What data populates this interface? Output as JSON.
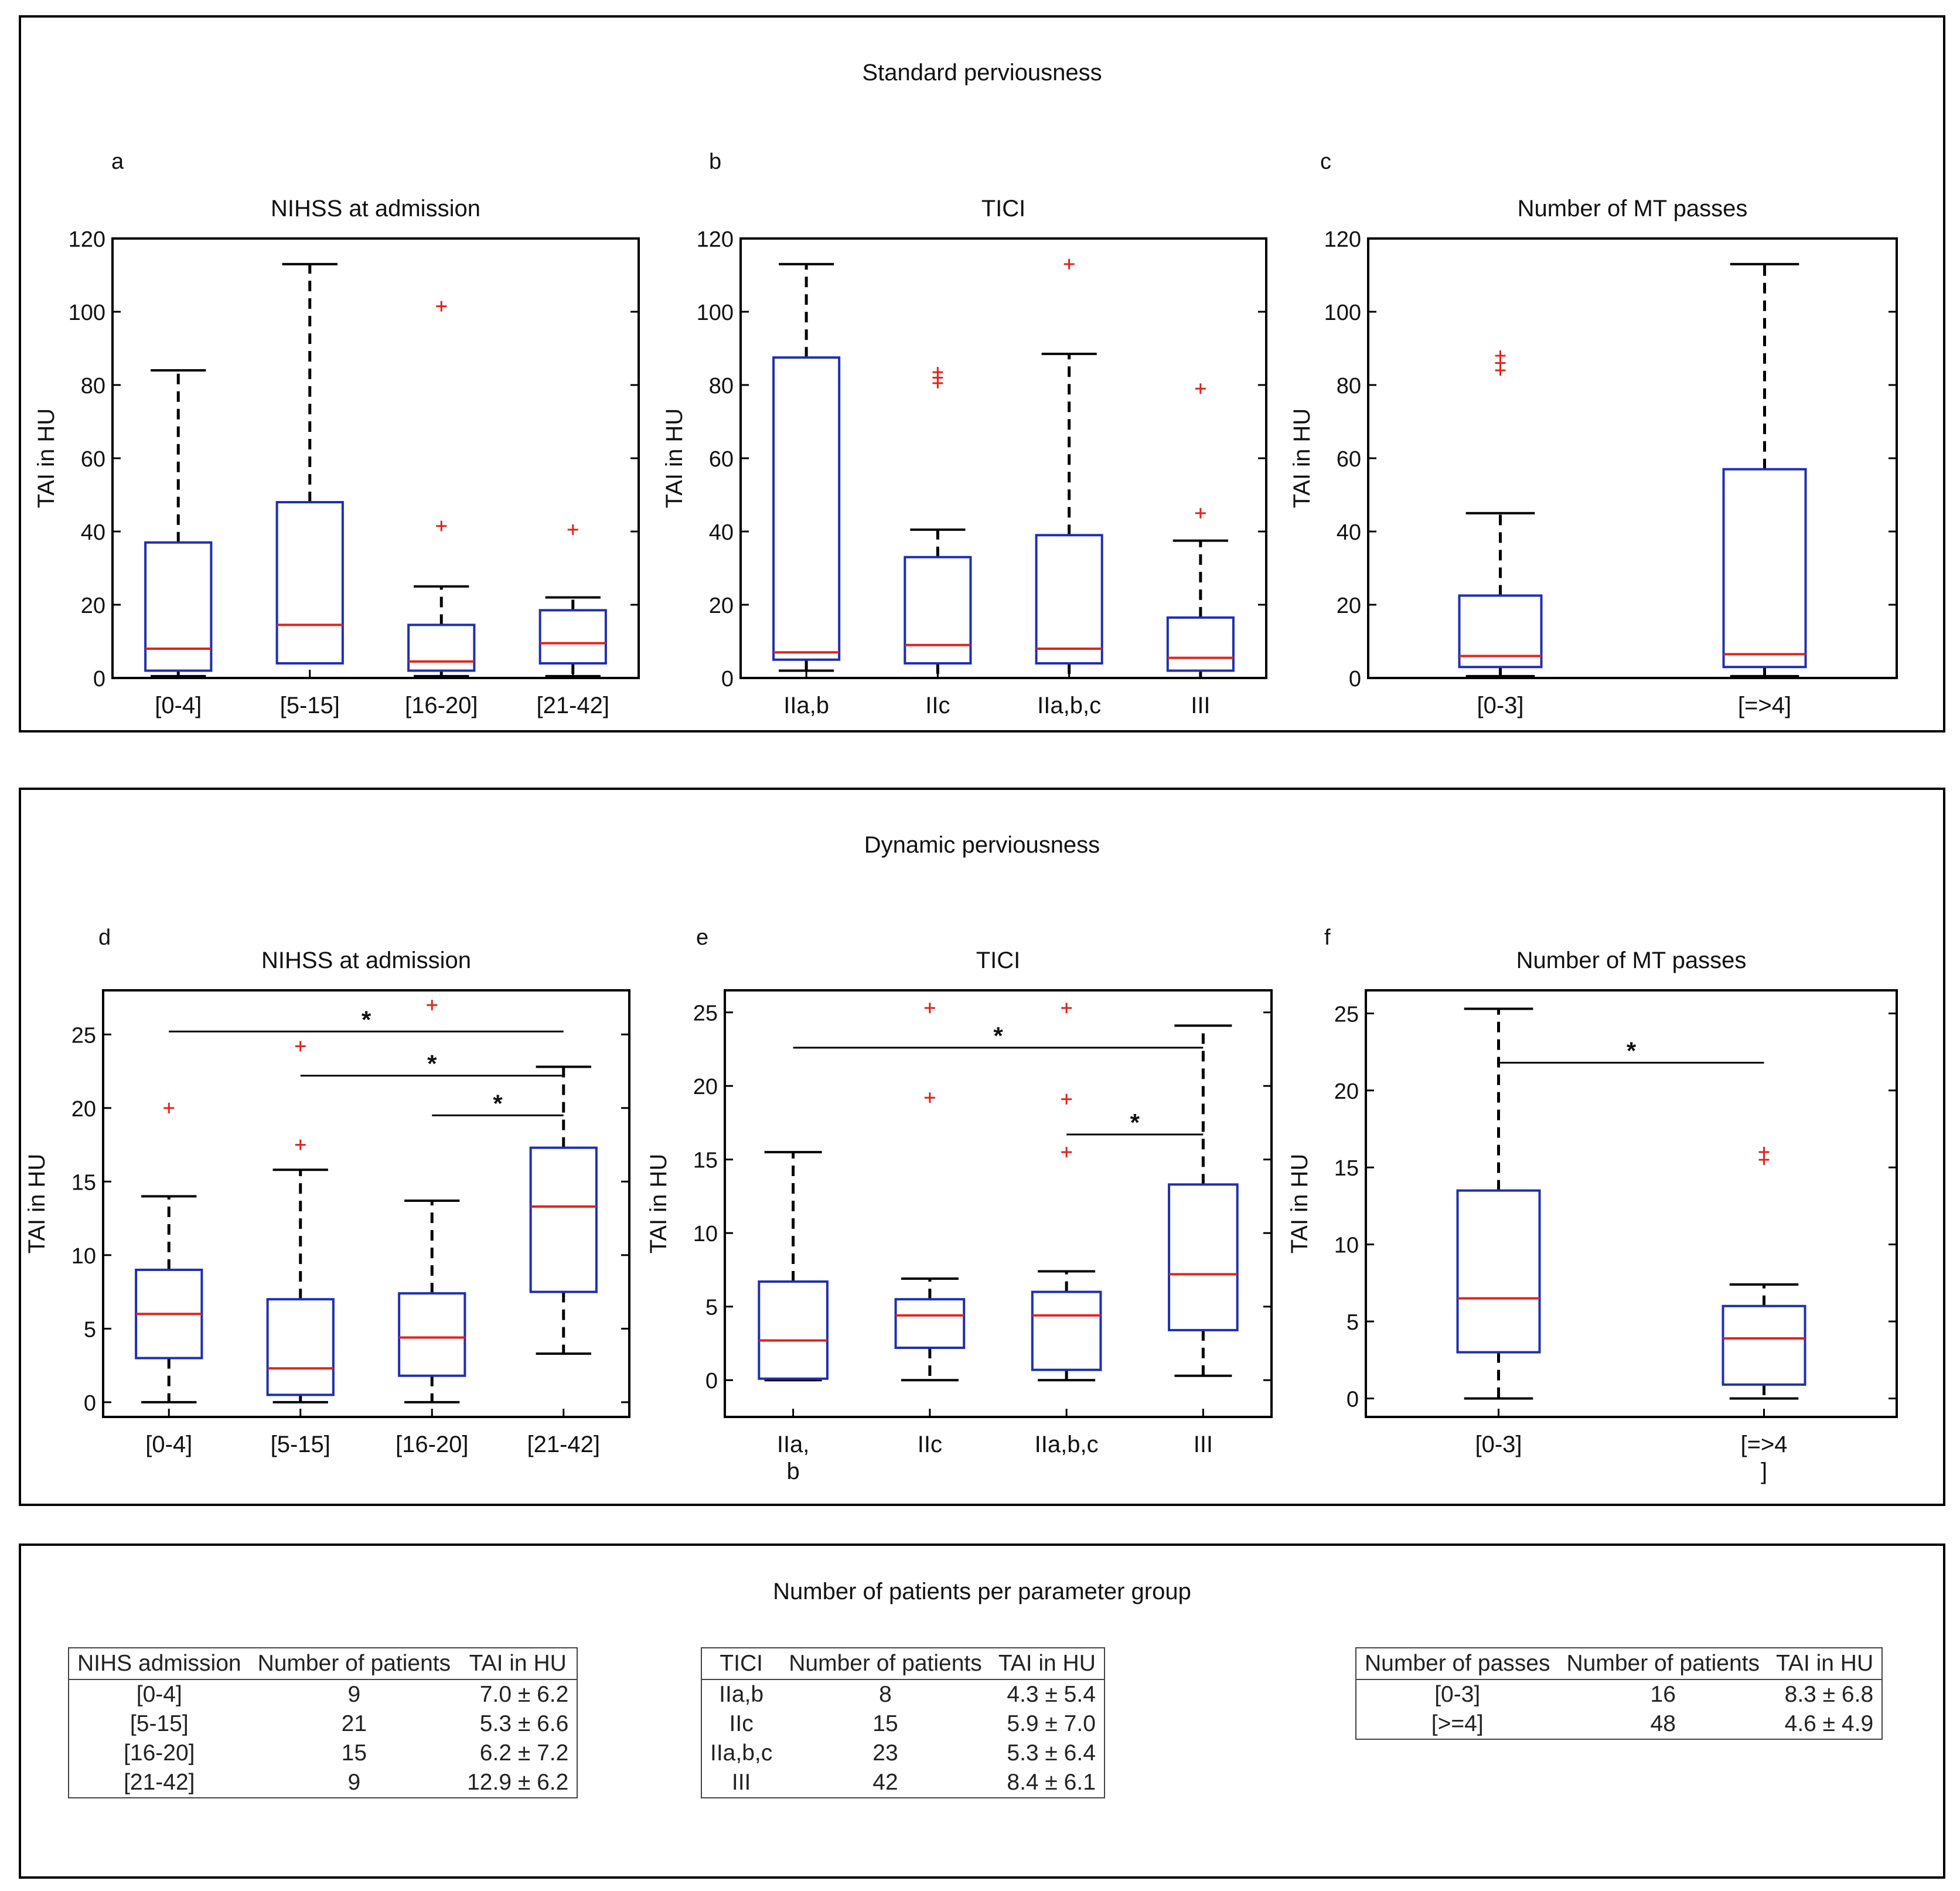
{
  "panels": {
    "standard_title": "Standard perviousness",
    "dynamic_title": "Dynamic perviousness",
    "table_title": "Number of patients per parameter group"
  },
  "colors": {
    "box": "#1f2fb0",
    "median": "#e0241c",
    "outlier": "#e0241c",
    "axis": "#000000"
  },
  "chart_data": [
    {
      "id": "a",
      "type": "box",
      "letter": "a",
      "title": "NIHSS at admission",
      "ylabel": "TAI in HU",
      "ylim": [
        0,
        120
      ],
      "yticks": [
        0,
        20,
        40,
        60,
        80,
        100,
        120
      ],
      "categories": [
        "[0-4]",
        "[5-15]",
        "[16-20]",
        "[21-42]"
      ],
      "boxes": [
        {
          "q1": 2,
          "median": 8,
          "q3": 37,
          "whisker_low": 0.5,
          "whisker_high": 84,
          "outliers": []
        },
        {
          "q1": 4,
          "median": 14.5,
          "q3": 48,
          "whisker_low": 4,
          "whisker_high": 113,
          "outliers": []
        },
        {
          "q1": 2,
          "median": 4.5,
          "q3": 14.5,
          "whisker_low": 0.5,
          "whisker_high": 25,
          "outliers": [
            41.5,
            101.5
          ]
        },
        {
          "q1": 4,
          "median": 9.5,
          "q3": 18.5,
          "whisker_low": 0.5,
          "whisker_high": 22,
          "outliers": [
            40.5
          ]
        }
      ],
      "significance": []
    },
    {
      "id": "b",
      "type": "box",
      "letter": "b",
      "title": "TICI",
      "ylabel": "TAI in HU",
      "ylim": [
        0,
        120
      ],
      "yticks": [
        0,
        20,
        40,
        60,
        80,
        100,
        120
      ],
      "categories": [
        "IIa,b",
        "IIc",
        "IIa,b,c",
        "III"
      ],
      "boxes": [
        {
          "q1": 5,
          "median": 7,
          "q3": 87.5,
          "whisker_low": 2,
          "whisker_high": 113,
          "outliers": []
        },
        {
          "q1": 4,
          "median": 9,
          "q3": 33,
          "whisker_low": 0,
          "whisker_high": 40.5,
          "outliers": [
            80.5,
            82,
            83.5
          ]
        },
        {
          "q1": 4,
          "median": 8,
          "q3": 39,
          "whisker_low": 0,
          "whisker_high": 88.5,
          "outliers": [
            113
          ]
        },
        {
          "q1": 2,
          "median": 5.5,
          "q3": 16.5,
          "whisker_low": 0,
          "whisker_high": 37.5,
          "outliers": [
            45,
            79
          ]
        }
      ],
      "significance": []
    },
    {
      "id": "c",
      "type": "box",
      "letter": "c",
      "title": "Number of MT passes",
      "ylabel": "TAI in HU",
      "ylim": [
        0,
        120
      ],
      "yticks": [
        0,
        20,
        40,
        60,
        80,
        100,
        120
      ],
      "categories": [
        "[0-3]",
        "[=>4]"
      ],
      "boxes": [
        {
          "q1": 3,
          "median": 6,
          "q3": 22.5,
          "whisker_low": 0.5,
          "whisker_high": 45,
          "outliers": [
            84,
            86,
            88
          ]
        },
        {
          "q1": 3,
          "median": 6.5,
          "q3": 57,
          "whisker_low": 0.5,
          "whisker_high": 113,
          "outliers": []
        }
      ],
      "significance": []
    },
    {
      "id": "d",
      "type": "box",
      "letter": "d",
      "title": "NIHSS at admission",
      "ylabel": "TAI in HU",
      "ylim": [
        -1,
        28
      ],
      "yticks": [
        0,
        5,
        10,
        15,
        20,
        25
      ],
      "categories": [
        "[0-4]",
        "[5-15]",
        "[16-20]",
        "[21-42]"
      ],
      "boxes": [
        {
          "q1": 3,
          "median": 6,
          "q3": 9,
          "whisker_low": 0,
          "whisker_high": 14,
          "outliers": [
            20
          ]
        },
        {
          "q1": 0.5,
          "median": 2.3,
          "q3": 7,
          "whisker_low": 0,
          "whisker_high": 15.8,
          "outliers": [
            17.5,
            24.2
          ]
        },
        {
          "q1": 1.8,
          "median": 4.4,
          "q3": 7.4,
          "whisker_low": 0,
          "whisker_high": 13.7,
          "outliers": [
            27
          ]
        },
        {
          "q1": 7.5,
          "median": 13.3,
          "q3": 17.3,
          "whisker_low": 3.3,
          "whisker_high": 22.8,
          "outliers": []
        }
      ],
      "significance": [
        {
          "from": 0,
          "to": 3,
          "y": 25.2,
          "label": "*"
        },
        {
          "from": 1,
          "to": 3,
          "y": 22.2,
          "label": "*"
        },
        {
          "from": 2,
          "to": 3,
          "y": 19.5,
          "label": "*"
        }
      ]
    },
    {
      "id": "e",
      "type": "box",
      "letter": "e",
      "title": "TICI",
      "ylabel": "TAI in HU",
      "ylim": [
        -2.5,
        26.5
      ],
      "yticks": [
        0,
        5,
        10,
        15,
        20,
        25
      ],
      "categories": [
        "IIa,\nb",
        "IIc",
        "IIa,b,c",
        "III"
      ],
      "boxes": [
        {
          "q1": 0.1,
          "median": 2.7,
          "q3": 6.7,
          "whisker_low": 0,
          "whisker_high": 15.5,
          "outliers": []
        },
        {
          "q1": 2.2,
          "median": 4.4,
          "q3": 5.5,
          "whisker_low": 0,
          "whisker_high": 6.9,
          "outliers": [
            19.2,
            25.3
          ]
        },
        {
          "q1": 0.7,
          "median": 4.4,
          "q3": 6,
          "whisker_low": 0,
          "whisker_high": 7.4,
          "outliers": [
            15.5,
            19.1,
            25.3
          ]
        },
        {
          "q1": 3.4,
          "median": 7.2,
          "q3": 13.3,
          "whisker_low": 0.3,
          "whisker_high": 24.1,
          "outliers": []
        }
      ],
      "significance": [
        {
          "from": 0,
          "to": 3,
          "y": 22.6,
          "label": "*"
        },
        {
          "from": 2,
          "to": 3,
          "y": 16.7,
          "label": "*"
        }
      ]
    },
    {
      "id": "f",
      "type": "box",
      "letter": "f",
      "title": "Number of MT passes",
      "ylabel": "TAI in HU",
      "ylim": [
        -1.2,
        26.5
      ],
      "yticks": [
        0,
        5,
        10,
        15,
        20,
        25
      ],
      "categories": [
        "[0-3]",
        "[=>4\n]"
      ],
      "boxes": [
        {
          "q1": 3,
          "median": 6.5,
          "q3": 13.5,
          "whisker_low": 0,
          "whisker_high": 25.3,
          "outliers": []
        },
        {
          "q1": 0.9,
          "median": 3.9,
          "q3": 6,
          "whisker_low": 0,
          "whisker_high": 7.4,
          "outliers": [
            15.5,
            16
          ]
        }
      ],
      "significance": [
        {
          "from": 0,
          "to": 1,
          "y": 21.8,
          "label": "*"
        }
      ]
    }
  ],
  "tables": [
    {
      "headers": [
        "NIHS admission",
        "Number of patients",
        "TAI in HU"
      ],
      "rows": [
        [
          "[0-4]",
          "9",
          "7.0 ± 6.2"
        ],
        [
          "[5-15]",
          "21",
          "5.3 ± 6.6"
        ],
        [
          "[16-20]",
          "15",
          "6.2 ± 7.2"
        ],
        [
          "[21-42]",
          "9",
          "12.9 ± 6.2"
        ]
      ]
    },
    {
      "headers": [
        "TICI",
        "Number of patients",
        "TAI in HU"
      ],
      "rows": [
        [
          "IIa,b",
          "8",
          "4.3 ± 5.4"
        ],
        [
          "IIc",
          "15",
          "5.9 ± 7.0"
        ],
        [
          "IIa,b,c",
          "23",
          "5.3 ± 6.4"
        ],
        [
          "III",
          "42",
          "8.4 ± 6.1"
        ]
      ]
    },
    {
      "headers": [
        "Number of passes",
        "Number of patients",
        "TAI in HU"
      ],
      "rows": [
        [
          "[0-3]",
          "16",
          "8.3 ± 6.8"
        ],
        [
          "[>=4]",
          "48",
          "4.6 ± 4.9"
        ]
      ]
    }
  ]
}
